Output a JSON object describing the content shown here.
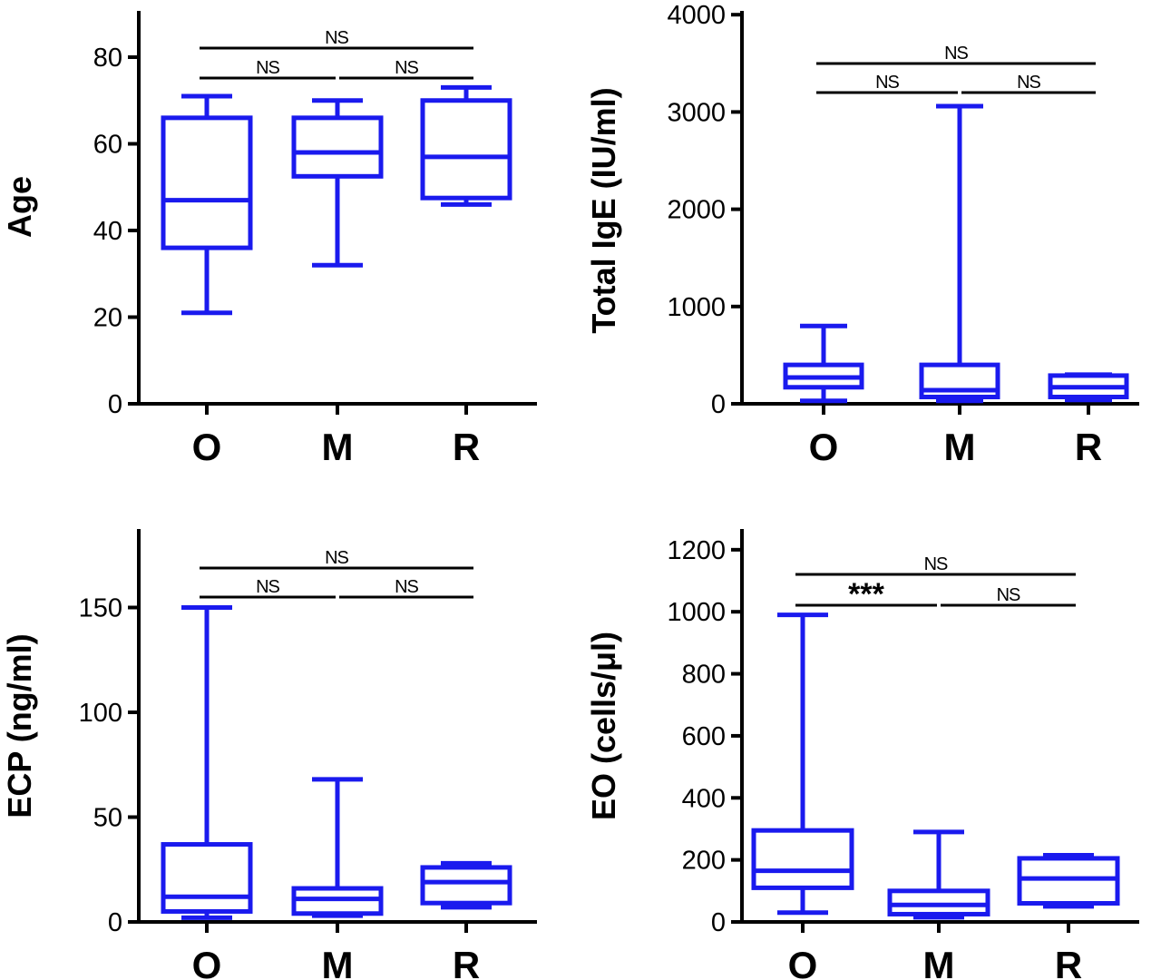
{
  "chart_data": [
    {
      "type": "box",
      "ylabel": "Age",
      "ylim": [
        0,
        90
      ],
      "yticks": [
        "0",
        "20",
        "40",
        "60",
        "80"
      ],
      "categories": [
        "O",
        "M",
        "R"
      ],
      "color": "#1a1aee",
      "boxes": [
        {
          "category": "O",
          "min": 21,
          "q1": 36,
          "median": 47,
          "q3": 66,
          "max": 71
        },
        {
          "category": "M",
          "min": 32,
          "q1": 52.5,
          "median": 58,
          "q3": 66,
          "max": 70
        },
        {
          "category": "R",
          "min": 46,
          "q1": 47.5,
          "median": 57,
          "q3": 70,
          "max": 73
        }
      ],
      "comparisons": [
        {
          "from": "O",
          "to": "R",
          "label": "NS"
        },
        {
          "from": "O",
          "to": "M",
          "label": "NS"
        },
        {
          "from": "M",
          "to": "R",
          "label": "NS"
        }
      ]
    },
    {
      "type": "box",
      "ylabel": "Total IgE (IU/ml)",
      "ylim": [
        0,
        4000
      ],
      "yticks": [
        "0",
        "1000",
        "2000",
        "3000",
        "4000"
      ],
      "categories": [
        "O",
        "M",
        "R"
      ],
      "color": "#1a1aee",
      "boxes": [
        {
          "category": "O",
          "min": 30,
          "q1": 170,
          "median": 270,
          "q3": 400,
          "max": 800
        },
        {
          "category": "M",
          "min": 30,
          "q1": 70,
          "median": 140,
          "q3": 400,
          "max": 3060
        },
        {
          "category": "R",
          "min": 40,
          "q1": 70,
          "median": 170,
          "q3": 290,
          "max": 300
        }
      ],
      "comparisons": [
        {
          "from": "O",
          "to": "R",
          "label": "NS"
        },
        {
          "from": "O",
          "to": "M",
          "label": "NS"
        },
        {
          "from": "M",
          "to": "R",
          "label": "NS"
        }
      ]
    },
    {
      "type": "box",
      "ylabel": "ECP (ng/ml)",
      "ylim": [
        0,
        185
      ],
      "yticks": [
        "0",
        "50",
        "100",
        "150"
      ],
      "categories": [
        "O",
        "M",
        "R"
      ],
      "color": "#1a1aee",
      "boxes": [
        {
          "category": "O",
          "min": 2,
          "q1": 5,
          "median": 12,
          "q3": 37,
          "max": 150
        },
        {
          "category": "M",
          "min": 3,
          "q1": 4,
          "median": 11,
          "q3": 16,
          "max": 68
        },
        {
          "category": "R",
          "min": 7,
          "q1": 9,
          "median": 19,
          "q3": 26,
          "max": 28
        }
      ],
      "comparisons": [
        {
          "from": "O",
          "to": "R",
          "label": "NS"
        },
        {
          "from": "O",
          "to": "M",
          "label": "NS"
        },
        {
          "from": "M",
          "to": "R",
          "label": "NS"
        }
      ]
    },
    {
      "type": "box",
      "ylabel": "EO (cells/μl)",
      "ylim": [
        0,
        1250
      ],
      "yticks": [
        "0",
        "200",
        "400",
        "600",
        "800",
        "1000",
        "1200"
      ],
      "categories": [
        "O",
        "M",
        "R"
      ],
      "color": "#1a1aee",
      "boxes": [
        {
          "category": "O",
          "min": 30,
          "q1": 110,
          "median": 165,
          "q3": 295,
          "max": 990
        },
        {
          "category": "M",
          "min": 15,
          "q1": 25,
          "median": 55,
          "q3": 100,
          "max": 290
        },
        {
          "category": "R",
          "min": 50,
          "q1": 60,
          "median": 140,
          "q3": 205,
          "max": 215
        }
      ],
      "comparisons": [
        {
          "from": "O",
          "to": "R",
          "label": "NS"
        },
        {
          "from": "O",
          "to": "M",
          "label": "***"
        },
        {
          "from": "M",
          "to": "R",
          "label": "NS"
        }
      ]
    }
  ]
}
